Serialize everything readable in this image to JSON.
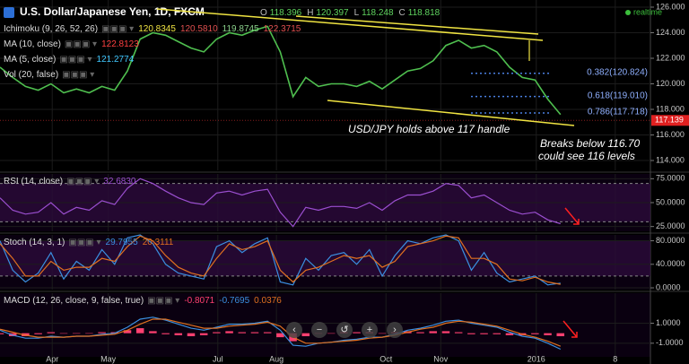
{
  "chart_data": [
    {
      "type": "line",
      "title": "U.S. Dollar/Japanese Yen, 1D, FXCM",
      "status": "realtime",
      "ohlc": [
        {
          "label": "O",
          "value": 118.396
        },
        {
          "label": "H",
          "value": 120.397
        },
        {
          "label": "L",
          "value": 118.248
        },
        {
          "label": "C",
          "value": 118.818
        }
      ],
      "indicators": [
        {
          "name": "Ichimoku (9, 26, 52, 26)",
          "values": [
            "120.8345",
            "120.5810",
            "119.8745",
            "122.3715"
          ],
          "colors": [
            "#f0e442",
            "#e05050",
            "#8ad08a",
            "#e05050"
          ]
        },
        {
          "name": "MA (10, close)",
          "values": [
            "122.8123"
          ],
          "colors": [
            "#ff4040"
          ]
        },
        {
          "name": "MA (5, close)",
          "values": [
            "121.2774"
          ],
          "colors": [
            "#40c8ff"
          ]
        },
        {
          "name": "Vol (20, false)",
          "values": [],
          "colors": []
        }
      ],
      "x": [
        0,
        1,
        2,
        3,
        4,
        5,
        6,
        7,
        8,
        9,
        10,
        11,
        12,
        13,
        14,
        15,
        16,
        17,
        18,
        19,
        20,
        21,
        22,
        23,
        24,
        25,
        26,
        27,
        28,
        29,
        30,
        31,
        32,
        33,
        34,
        35,
        36,
        37,
        38,
        39,
        40,
        41,
        42,
        43,
        44
      ],
      "series": [
        {
          "name": "USD/JPY",
          "color": "#4fbf4f",
          "values": [
            121.3,
            120.5,
            119.8,
            119.5,
            120.0,
            119.3,
            119.6,
            119.3,
            119.8,
            119.5,
            121.0,
            123.5,
            124.0,
            123.8,
            123.3,
            122.8,
            122.5,
            123.5,
            124.0,
            123.8,
            124.2,
            124.5,
            122.5,
            119.0,
            120.5,
            119.8,
            120.0,
            120.0,
            119.8,
            120.2,
            119.6,
            120.3,
            121.0,
            121.2,
            121.8,
            123.0,
            123.4,
            122.8,
            123.0,
            122.5,
            121.3,
            120.5,
            120.3,
            118.8,
            117.6
          ]
        }
      ],
      "xlim": [
        0,
        51.06
      ],
      "ylim": [
        113.23,
        126.56
      ],
      "yticks": [
        {
          "value": 114,
          "label": "114.000"
        },
        {
          "value": 116,
          "label": "116.000"
        },
        {
          "value": 118,
          "label": "118.000"
        },
        {
          "value": 120,
          "label": "120.000"
        },
        {
          "value": 122,
          "label": "122.000"
        },
        {
          "value": 124,
          "label": "124.000"
        },
        {
          "value": 126,
          "label": "126.000"
        }
      ],
      "levels": [
        {
          "label": "0.382(120.824)",
          "value": 120.824
        },
        {
          "label": "0.618(119.010)",
          "value": 119.01
        },
        {
          "label": "0.786(117.718)",
          "value": 117.718
        }
      ],
      "last": 117.139,
      "annotations": [
        "USD/JPY holds above 117 handle",
        "Breaks below 116.70",
        "could see 116 levels"
      ]
    },
    {
      "type": "line",
      "legend": {
        "name": "RSI (14, close)",
        "values": [
          "32.6830"
        ],
        "colors": [
          "#9b4fd0"
        ]
      },
      "x": [
        0,
        1,
        2,
        3,
        4,
        5,
        6,
        7,
        8,
        9,
        10,
        11,
        12,
        13,
        14,
        15,
        16,
        17,
        18,
        19,
        20,
        21,
        22,
        23,
        24,
        25,
        26,
        27,
        28,
        29,
        30,
        31,
        32,
        33,
        34,
        35,
        36,
        37,
        38,
        39,
        40,
        41,
        42,
        43,
        44
      ],
      "series": [
        {
          "name": "RSI",
          "color": "#9b4fd0",
          "values": [
            55,
            42,
            38,
            40,
            50,
            38,
            45,
            42,
            52,
            48,
            65,
            75,
            70,
            62,
            55,
            50,
            48,
            60,
            62,
            58,
            62,
            64,
            40,
            25,
            45,
            42,
            46,
            46,
            44,
            50,
            42,
            52,
            58,
            58,
            62,
            70,
            68,
            55,
            58,
            50,
            42,
            38,
            40,
            32,
            28
          ]
        }
      ],
      "xlim": [
        0,
        51.06
      ],
      "ylim": [
        20,
        80
      ],
      "bands": [
        30,
        70
      ],
      "yticks": [
        {
          "value": 25,
          "label": "25.0000"
        },
        {
          "value": 50,
          "label": "50.0000"
        },
        {
          "value": 75,
          "label": "75.0000"
        }
      ]
    },
    {
      "type": "line",
      "legend": {
        "name": "Stoch (14, 3, 1)",
        "values": [
          "29.7955",
          "20.3111"
        ],
        "colors": [
          "#3b8fe0",
          "#e07020"
        ]
      },
      "x": [
        0,
        1,
        2,
        3,
        4,
        5,
        6,
        7,
        8,
        9,
        10,
        11,
        12,
        13,
        14,
        15,
        16,
        17,
        18,
        19,
        20,
        21,
        22,
        23,
        24,
        25,
        26,
        27,
        28,
        29,
        30,
        31,
        32,
        33,
        34,
        35,
        36,
        37,
        38,
        39,
        40,
        41,
        42,
        43,
        44
      ],
      "series": [
        {
          "name": "%K",
          "color": "#3b8fe0",
          "values": [
            80,
            30,
            10,
            25,
            60,
            15,
            45,
            30,
            65,
            40,
            85,
            90,
            75,
            40,
            25,
            20,
            15,
            70,
            80,
            60,
            75,
            85,
            10,
            5,
            50,
            30,
            55,
            60,
            40,
            65,
            20,
            55,
            80,
            75,
            85,
            90,
            80,
            30,
            60,
            25,
            10,
            15,
            20,
            5,
            8
          ]
        },
        {
          "name": "%D",
          "color": "#e07020",
          "values": [
            75,
            50,
            20,
            20,
            45,
            30,
            35,
            35,
            50,
            45,
            70,
            88,
            80,
            55,
            35,
            25,
            20,
            50,
            75,
            65,
            70,
            80,
            30,
            10,
            30,
            35,
            45,
            55,
            50,
            55,
            35,
            45,
            70,
            75,
            80,
            88,
            85,
            50,
            50,
            40,
            15,
            12,
            18,
            10,
            6
          ]
        }
      ],
      "xlim": [
        0,
        51.06
      ],
      "ylim": [
        -3,
        90
      ],
      "bands": [
        20,
        80
      ],
      "yticks": [
        {
          "value": 0,
          "label": "0.0000"
        },
        {
          "value": 40,
          "label": "40.0000"
        },
        {
          "value": 80,
          "label": "80.0000"
        }
      ]
    },
    {
      "type": "line",
      "legend": {
        "name": "MACD (12, 26, close, 9, false, true)",
        "values": [
          "-0.8071",
          "-0.7695",
          "0.0376"
        ],
        "colors": [
          "#ff4070",
          "#3b8fe0",
          "#e07020"
        ]
      },
      "x": [
        0,
        1,
        2,
        3,
        4,
        5,
        6,
        7,
        8,
        9,
        10,
        11,
        12,
        13,
        14,
        15,
        16,
        17,
        18,
        19,
        20,
        21,
        22,
        23,
        24,
        25,
        26,
        27,
        28,
        29,
        30,
        31,
        32,
        33,
        34,
        35,
        36,
        37,
        38,
        39,
        40,
        41,
        42,
        43,
        44
      ],
      "series": [
        {
          "name": "Histogram",
          "type": "bar",
          "color": "#ff4070",
          "values": [
            -0.1,
            -0.3,
            -0.3,
            -0.1,
            0.1,
            0,
            0,
            0,
            0.1,
            0.1,
            0.3,
            0.5,
            0.2,
            -0.1,
            -0.2,
            -0.3,
            -0.2,
            0.1,
            0.2,
            0.1,
            0.1,
            0.1,
            -0.4,
            -0.8,
            -0.3,
            0,
            0,
            0.1,
            0.1,
            0.1,
            0,
            0.1,
            0.2,
            0.1,
            0.2,
            0.2,
            0.1,
            -0.1,
            -0.1,
            -0.1,
            -0.2,
            -0.2,
            -0.1,
            -0.2,
            -0.3
          ]
        },
        {
          "name": "MACD",
          "color": "#3b8fe0",
          "values": [
            0.3,
            -0.2,
            -0.5,
            -0.5,
            -0.3,
            -0.4,
            -0.3,
            -0.3,
            -0.1,
            0,
            0.6,
            1.4,
            1.6,
            1.3,
            0.9,
            0.5,
            0.3,
            0.6,
            0.9,
            0.9,
            1.0,
            1.2,
            0.3,
            -1.2,
            -1.3,
            -1.0,
            -0.9,
            -0.7,
            -0.6,
            -0.4,
            -0.4,
            -0.1,
            0.3,
            0.5,
            0.8,
            1.2,
            1.3,
            1.0,
            0.8,
            0.6,
            0.1,
            -0.3,
            -0.5,
            -1.0,
            -1.6
          ]
        },
        {
          "name": "Signal",
          "color": "#e07020",
          "values": [
            0.4,
            0.1,
            -0.2,
            -0.4,
            -0.4,
            -0.4,
            -0.3,
            -0.3,
            -0.2,
            -0.1,
            0.3,
            0.9,
            1.4,
            1.4,
            1.1,
            0.8,
            0.5,
            0.5,
            0.7,
            0.8,
            0.9,
            1.1,
            0.7,
            -0.4,
            -1.0,
            -1.0,
            -0.9,
            -0.8,
            -0.7,
            -0.5,
            -0.4,
            -0.2,
            0.1,
            0.4,
            0.6,
            1.0,
            1.2,
            1.1,
            0.9,
            0.7,
            0.3,
            -0.1,
            -0.4,
            -0.8,
            -1.3
          ]
        }
      ],
      "xlim": [
        0,
        51.06
      ],
      "ylim": [
        -2.36,
        4
      ],
      "yticks": [
        {
          "value": -1,
          "label": "-1.0000"
        },
        {
          "value": 1,
          "label": "1.0000"
        }
      ],
      "xticks": [
        {
          "value": 4.1,
          "label": "Apr"
        },
        {
          "value": 8.5,
          "label": "May"
        },
        {
          "value": 17.1,
          "label": "Jul"
        },
        {
          "value": 21.7,
          "label": "Aug"
        },
        {
          "value": 30.3,
          "label": "Oct"
        },
        {
          "value": 34.6,
          "label": "Nov"
        },
        {
          "value": 42.1,
          "label": "2016"
        },
        {
          "value": 48.3,
          "label": "8"
        }
      ]
    }
  ]
}
